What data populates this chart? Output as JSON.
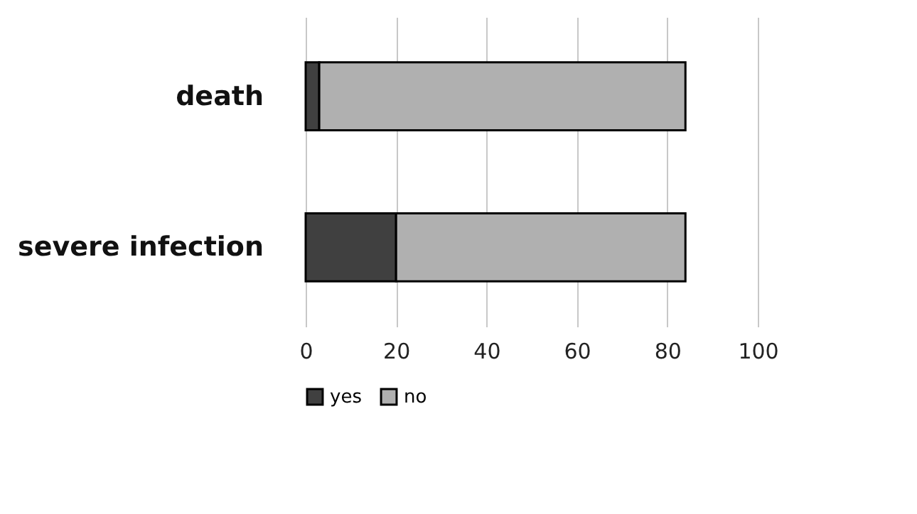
{
  "chart_data": {
    "type": "bar",
    "orientation": "horizontal",
    "stacked": true,
    "categories": [
      "death",
      "severe infection"
    ],
    "series": [
      {
        "name": "yes",
        "color": "#404040",
        "values": [
          3,
          20
        ]
      },
      {
        "name": "no",
        "color": "#b0b0b0",
        "values": [
          81,
          64
        ]
      }
    ],
    "xlim": [
      0,
      100
    ],
    "xticks": [
      0,
      20,
      40,
      60,
      80,
      100
    ],
    "grid": "x",
    "legend": "bottom"
  }
}
